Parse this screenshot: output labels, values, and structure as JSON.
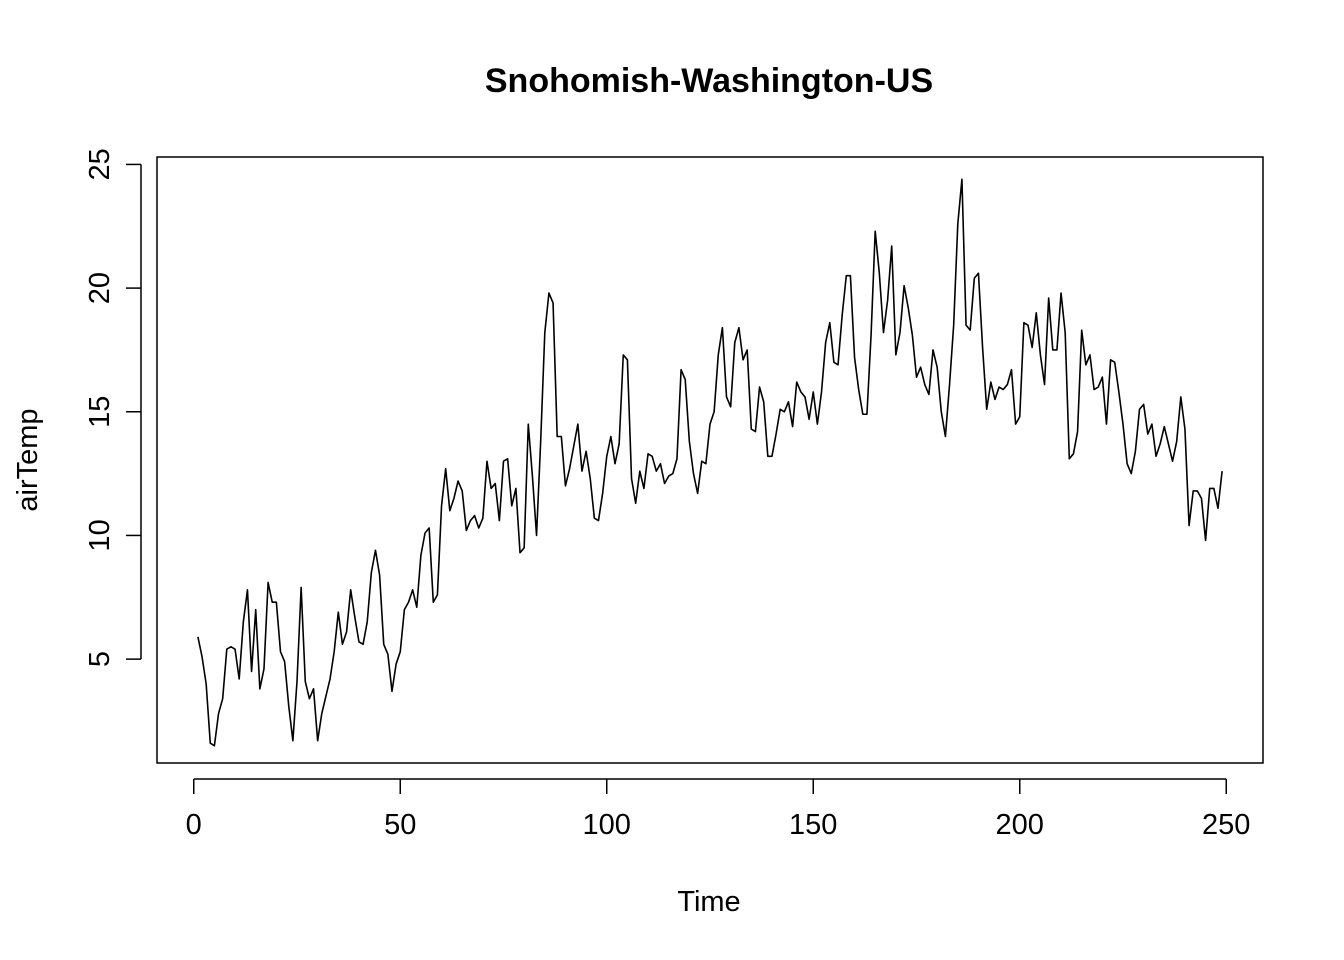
{
  "chart_data": {
    "type": "line",
    "title": "Snohomish-Washington-US",
    "xlabel": "Time",
    "ylabel": "airTemp",
    "xlim": [
      -8.9,
      258.9
    ],
    "ylim": [
      0.8,
      25.3
    ],
    "x_ticks": [
      0,
      50,
      100,
      150,
      200,
      250
    ],
    "y_ticks": [
      5,
      10,
      15,
      20,
      25
    ],
    "grid": false,
    "legend": "none",
    "line_color": "#000000",
    "x_start": 1,
    "values": [
      5.9,
      5.1,
      4.0,
      1.6,
      1.5,
      2.8,
      3.4,
      5.4,
      5.5,
      5.4,
      4.2,
      6.5,
      7.8,
      4.5,
      7.0,
      3.8,
      4.6,
      8.1,
      7.3,
      7.3,
      5.3,
      4.9,
      3.1,
      1.7,
      4.1,
      7.9,
      4.1,
      3.4,
      3.8,
      1.7,
      2.8,
      3.5,
      4.2,
      5.3,
      6.9,
      5.6,
      6.1,
      7.8,
      6.7,
      5.7,
      5.6,
      6.5,
      8.5,
      9.4,
      8.4,
      5.6,
      5.2,
      3.7,
      4.8,
      5.3,
      7.0,
      7.3,
      7.8,
      7.1,
      9.2,
      10.1,
      10.3,
      7.3,
      7.6,
      11.2,
      12.7,
      11.0,
      11.5,
      12.2,
      11.8,
      10.2,
      10.6,
      10.8,
      10.3,
      10.7,
      13.0,
      11.9,
      12.1,
      10.6,
      13.0,
      13.1,
      11.2,
      11.9,
      9.3,
      9.5,
      14.5,
      12.4,
      10.0,
      13.8,
      18.2,
      19.8,
      19.4,
      14.0,
      14.0,
      12.0,
      12.7,
      13.6,
      14.5,
      12.6,
      13.4,
      12.3,
      10.7,
      10.6,
      11.7,
      13.2,
      14.0,
      12.9,
      13.7,
      17.3,
      17.1,
      12.3,
      11.3,
      12.6,
      11.9,
      13.3,
      13.2,
      12.6,
      12.9,
      12.1,
      12.4,
      12.5,
      13.1,
      16.7,
      16.3,
      13.8,
      12.5,
      11.7,
      13.0,
      12.9,
      14.5,
      15.0,
      17.3,
      18.4,
      15.6,
      15.2,
      17.8,
      18.4,
      17.1,
      17.5,
      14.3,
      14.2,
      16.0,
      15.4,
      13.2,
      13.2,
      14.1,
      15.1,
      15.0,
      15.4,
      14.4,
      16.2,
      15.8,
      15.6,
      14.7,
      15.8,
      14.5,
      15.8,
      17.8,
      18.6,
      17.0,
      16.9,
      18.9,
      20.5,
      20.5,
      17.2,
      15.9,
      14.9,
      14.9,
      18.1,
      22.3,
      20.6,
      18.2,
      19.5,
      21.7,
      17.3,
      18.2,
      20.1,
      19.2,
      18.1,
      16.4,
      16.8,
      16.1,
      15.7,
      17.5,
      16.8,
      15.0,
      14.0,
      16.1,
      18.5,
      22.6,
      24.4,
      18.5,
      18.3,
      20.4,
      20.6,
      17.6,
      15.1,
      16.2,
      15.5,
      16.0,
      15.9,
      16.1,
      16.7,
      14.5,
      14.8,
      18.6,
      18.5,
      17.6,
      19.0,
      17.3,
      16.1,
      19.6,
      17.5,
      17.5,
      19.8,
      18.2,
      13.1,
      13.3,
      14.2,
      18.3,
      16.9,
      17.3,
      15.9,
      16.0,
      16.4,
      14.5,
      17.1,
      17.0,
      15.8,
      14.5,
      12.9,
      12.5,
      13.4,
      15.1,
      15.3,
      14.1,
      14.5,
      13.2,
      13.7,
      14.4,
      13.7,
      13.0,
      13.8,
      15.6,
      14.3,
      10.4,
      11.8,
      11.8,
      11.5,
      9.8,
      11.9,
      11.9,
      11.1,
      12.6
    ]
  }
}
